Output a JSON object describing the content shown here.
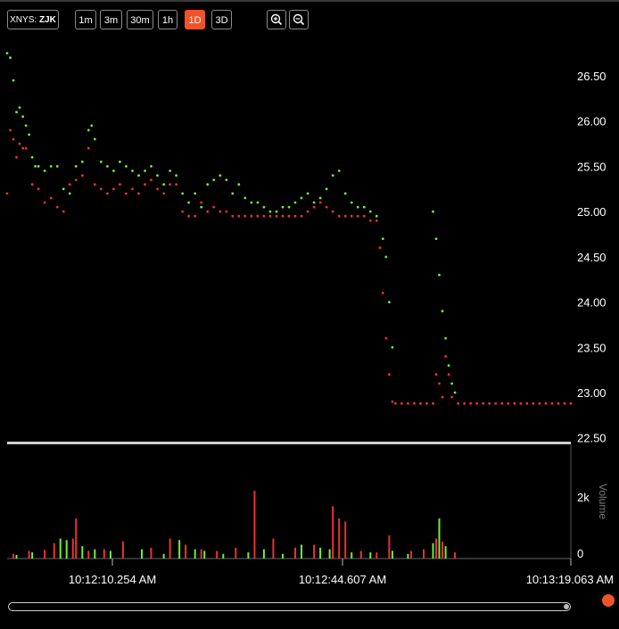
{
  "toolbar": {
    "exchange": "XNYS:",
    "ticker": "ZJK",
    "intervals": [
      "1m",
      "3m",
      "30m",
      "1h",
      "1D",
      "3D"
    ],
    "active_interval": "1D",
    "zoom_in_icon": "zoom-in-icon",
    "zoom_out_icon": "zoom-out-icon"
  },
  "colors": {
    "up": "#6cf03a",
    "down": "#f03030",
    "accent": "#f0532a",
    "background": "#000000"
  },
  "chart_data": [
    {
      "type": "scatter",
      "title": "",
      "ylim": [
        22.5,
        26.9
      ],
      "y_ticks": [
        "26.50",
        "26.00",
        "25.50",
        "25.00",
        "24.50",
        "24.00",
        "23.50",
        "23.00",
        "22.50"
      ],
      "x_ticks": [
        "10:12:10.254 AM",
        "10:12:44.607 AM",
        "10:13:19.063 AM"
      ],
      "series": [
        {
          "color": "up",
          "points": [
            [
              0,
              26.75
            ],
            [
              1,
              26.7
            ],
            [
              2,
              26.45
            ],
            [
              3,
              26.1
            ],
            [
              4,
              26.15
            ],
            [
              5,
              26.05
            ],
            [
              6,
              25.95
            ],
            [
              7,
              25.85
            ],
            [
              8,
              25.6
            ],
            [
              9,
              25.5
            ],
            [
              10,
              25.5
            ],
            [
              12,
              25.45
            ],
            [
              14,
              25.5
            ],
            [
              16,
              25.5
            ],
            [
              18,
              25.25
            ],
            [
              20,
              25.2
            ],
            [
              22,
              25.5
            ],
            [
              24,
              25.55
            ],
            [
              26,
              25.9
            ],
            [
              27,
              25.95
            ],
            [
              28,
              25.8
            ],
            [
              30,
              25.55
            ],
            [
              32,
              25.5
            ],
            [
              34,
              25.45
            ],
            [
              36,
              25.55
            ],
            [
              38,
              25.5
            ],
            [
              40,
              25.45
            ],
            [
              42,
              25.4
            ],
            [
              44,
              25.45
            ],
            [
              46,
              25.5
            ],
            [
              48,
              25.4
            ],
            [
              50,
              25.3
            ],
            [
              52,
              25.45
            ],
            [
              54,
              25.4
            ],
            [
              56,
              25.2
            ],
            [
              58,
              25.1
            ],
            [
              60,
              25.2
            ],
            [
              62,
              25.05
            ],
            [
              64,
              25.3
            ],
            [
              66,
              25.35
            ],
            [
              68,
              25.4
            ],
            [
              70,
              25.35
            ],
            [
              72,
              25.2
            ],
            [
              74,
              25.3
            ],
            [
              76,
              25.15
            ],
            [
              78,
              25.1
            ],
            [
              80,
              25.1
            ],
            [
              82,
              25.05
            ],
            [
              84,
              25.0
            ],
            [
              86,
              25.0
            ],
            [
              88,
              25.05
            ],
            [
              90,
              25.05
            ],
            [
              92,
              25.1
            ],
            [
              94,
              25.15
            ],
            [
              96,
              25.2
            ],
            [
              98,
              25.1
            ],
            [
              100,
              25.15
            ],
            [
              102,
              25.25
            ],
            [
              104,
              25.4
            ],
            [
              106,
              25.45
            ],
            [
              108,
              25.2
            ],
            [
              110,
              25.1
            ],
            [
              112,
              25.05
            ],
            [
              114,
              25.05
            ],
            [
              116,
              25.0
            ],
            [
              118,
              24.95
            ],
            [
              120,
              24.7
            ],
            [
              121,
              24.5
            ],
            [
              122,
              24.0
            ],
            [
              123,
              23.5
            ],
            [
              136,
              25.0
            ],
            [
              137,
              24.7
            ],
            [
              138,
              24.3
            ],
            [
              139,
              23.9
            ],
            [
              140,
              23.6
            ],
            [
              141,
              23.3
            ],
            [
              142,
              23.1
            ],
            [
              143,
              23.0
            ]
          ]
        },
        {
          "color": "down",
          "points": [
            [
              0,
              25.2
            ],
            [
              1,
              25.9
            ],
            [
              2,
              25.8
            ],
            [
              3,
              25.6
            ],
            [
              4,
              25.75
            ],
            [
              5,
              25.7
            ],
            [
              6,
              25.7
            ],
            [
              8,
              25.3
            ],
            [
              10,
              25.25
            ],
            [
              12,
              25.1
            ],
            [
              14,
              25.15
            ],
            [
              16,
              25.05
            ],
            [
              18,
              25.0
            ],
            [
              20,
              25.3
            ],
            [
              22,
              25.35
            ],
            [
              24,
              25.4
            ],
            [
              26,
              25.7
            ],
            [
              28,
              25.3
            ],
            [
              30,
              25.25
            ],
            [
              32,
              25.2
            ],
            [
              34,
              25.25
            ],
            [
              36,
              25.3
            ],
            [
              38,
              25.2
            ],
            [
              40,
              25.25
            ],
            [
              42,
              25.2
            ],
            [
              44,
              25.3
            ],
            [
              46,
              25.35
            ],
            [
              48,
              25.25
            ],
            [
              50,
              25.2
            ],
            [
              52,
              25.3
            ],
            [
              54,
              25.3
            ],
            [
              56,
              25.0
            ],
            [
              58,
              24.95
            ],
            [
              60,
              24.95
            ],
            [
              62,
              25.1
            ],
            [
              64,
              25.0
            ],
            [
              66,
              25.05
            ],
            [
              68,
              25.0
            ],
            [
              70,
              25.0
            ],
            [
              72,
              24.95
            ],
            [
              74,
              24.95
            ],
            [
              76,
              24.95
            ],
            [
              78,
              24.95
            ],
            [
              80,
              24.95
            ],
            [
              82,
              24.95
            ],
            [
              84,
              24.95
            ],
            [
              86,
              24.95
            ],
            [
              88,
              24.95
            ],
            [
              90,
              24.95
            ],
            [
              92,
              24.95
            ],
            [
              94,
              24.95
            ],
            [
              96,
              25.0
            ],
            [
              98,
              25.05
            ],
            [
              100,
              25.1
            ],
            [
              102,
              25.05
            ],
            [
              104,
              25.0
            ],
            [
              106,
              24.95
            ],
            [
              108,
              24.95
            ],
            [
              110,
              24.95
            ],
            [
              112,
              24.95
            ],
            [
              114,
              24.95
            ],
            [
              116,
              24.9
            ],
            [
              118,
              24.9
            ],
            [
              119,
              24.6
            ],
            [
              120,
              24.1
            ],
            [
              121,
              23.6
            ],
            [
              122,
              23.2
            ],
            [
              123,
              22.9
            ],
            [
              124,
              22.88
            ],
            [
              126,
              22.88
            ],
            [
              128,
              22.88
            ],
            [
              130,
              22.88
            ],
            [
              132,
              22.88
            ],
            [
              134,
              22.88
            ],
            [
              136,
              22.88
            ],
            [
              137,
              23.2
            ],
            [
              138,
              23.1
            ],
            [
              139,
              22.95
            ],
            [
              140,
              23.4
            ],
            [
              141,
              23.2
            ],
            [
              142,
              22.95
            ],
            [
              144,
              22.88
            ],
            [
              146,
              22.88
            ],
            [
              148,
              22.88
            ],
            [
              150,
              22.88
            ],
            [
              152,
              22.88
            ],
            [
              154,
              22.88
            ],
            [
              156,
              22.88
            ],
            [
              158,
              22.88
            ],
            [
              160,
              22.88
            ],
            [
              162,
              22.88
            ],
            [
              164,
              22.88
            ],
            [
              166,
              22.88
            ],
            [
              168,
              22.88
            ],
            [
              170,
              22.88
            ],
            [
              172,
              22.88
            ],
            [
              174,
              22.88
            ],
            [
              176,
              22.88
            ],
            [
              178,
              22.88
            ],
            [
              180,
              22.88
            ]
          ]
        }
      ]
    },
    {
      "type": "bar",
      "ylabel": "Volume",
      "y_ticks": [
        "2k",
        "0"
      ],
      "ylim": [
        0,
        2500
      ],
      "series": [
        {
          "color": "up",
          "values": [
            [
              3,
              120
            ],
            [
              8,
              200
            ],
            [
              17,
              650
            ],
            [
              19,
              600
            ],
            [
              24,
              400
            ],
            [
              28,
              300
            ],
            [
              33,
              250
            ],
            [
              43,
              300
            ],
            [
              50,
              150
            ],
            [
              55,
              600
            ],
            [
              60,
              300
            ],
            [
              63,
              250
            ],
            [
              69,
              150
            ],
            [
              77,
              200
            ],
            [
              82,
              300
            ],
            [
              88,
              150
            ],
            [
              94,
              450
            ],
            [
              100,
              350
            ],
            [
              103,
              300
            ],
            [
              110,
              200
            ],
            [
              116,
              200
            ],
            [
              123,
              250
            ],
            [
              128,
              150
            ],
            [
              136,
              500
            ],
            [
              138,
              1300
            ],
            [
              140,
              400
            ]
          ]
        },
        {
          "color": "down",
          "values": [
            [
              2,
              150
            ],
            [
              7,
              250
            ],
            [
              12,
              280
            ],
            [
              15,
              500
            ],
            [
              21,
              650
            ],
            [
              22,
              1300
            ],
            [
              26,
              250
            ],
            [
              31,
              300
            ],
            [
              37,
              550
            ],
            [
              46,
              350
            ],
            [
              52,
              650
            ],
            [
              57,
              450
            ],
            [
              62,
              300
            ],
            [
              67,
              250
            ],
            [
              73,
              350
            ],
            [
              79,
              2200
            ],
            [
              85,
              650
            ],
            [
              92,
              350
            ],
            [
              98,
              450
            ],
            [
              104,
              1700
            ],
            [
              106,
              1300
            ],
            [
              108,
              1200
            ],
            [
              113,
              250
            ],
            [
              118,
              200
            ],
            [
              122,
              750
            ],
            [
              129,
              250
            ],
            [
              133,
              300
            ],
            [
              137,
              650
            ],
            [
              139,
              550
            ],
            [
              143,
              200
            ]
          ]
        }
      ]
    }
  ]
}
